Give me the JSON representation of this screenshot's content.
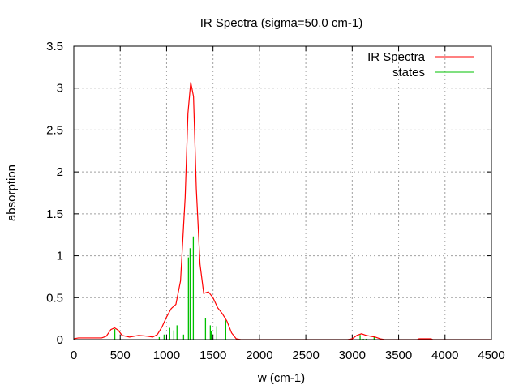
{
  "chart_data": {
    "type": "line",
    "title": "IR Spectra (sigma=50.0 cm-1)",
    "xlabel": "w (cm-1)",
    "ylabel": "absorption",
    "xlim": [
      0,
      4500
    ],
    "ylim": [
      0,
      3.5
    ],
    "xticks": [
      0,
      500,
      1000,
      1500,
      2000,
      2500,
      3000,
      3500,
      4000,
      4500
    ],
    "yticks": [
      0,
      0.5,
      1,
      1.5,
      2,
      2.5,
      3,
      3.5
    ],
    "ytick_labels": [
      "0",
      "0.5",
      "1",
      "1.5",
      "2",
      "2.5",
      "3",
      "3.5"
    ],
    "grid": true,
    "legend_position": "top-right",
    "series": [
      {
        "name": "IR Spectra",
        "color": "#ff0000",
        "style": "line",
        "x": [
          0,
          50,
          300,
          350,
          400,
          440,
          480,
          520,
          600,
          700,
          800,
          850,
          900,
          950,
          1000,
          1050,
          1100,
          1150,
          1200,
          1230,
          1260,
          1290,
          1320,
          1360,
          1400,
          1450,
          1500,
          1550,
          1600,
          1650,
          1700,
          1750,
          1800,
          2950,
          3000,
          3050,
          3100,
          3150,
          3200,
          3250,
          3300,
          3350,
          3700,
          3720,
          3850,
          3870,
          4500
        ],
        "y": [
          0.01,
          0.02,
          0.02,
          0.04,
          0.12,
          0.14,
          0.11,
          0.05,
          0.03,
          0.05,
          0.04,
          0.03,
          0.06,
          0.15,
          0.27,
          0.37,
          0.42,
          0.7,
          1.7,
          2.7,
          3.07,
          2.9,
          1.8,
          0.9,
          0.55,
          0.57,
          0.5,
          0.38,
          0.31,
          0.22,
          0.08,
          0.01,
          0,
          0,
          0.01,
          0.05,
          0.07,
          0.05,
          0.04,
          0.03,
          0.01,
          0,
          0,
          0.01,
          0.01,
          0,
          0
        ]
      },
      {
        "name": "states",
        "color": "#00c000",
        "style": "impulses",
        "x": [
          442,
          921,
          973,
          1034,
          1078,
          1112,
          1183,
          1235,
          1253,
          1288,
          1419,
          1471,
          1480,
          1541,
          1637,
          3085,
          3120,
          3150,
          3236
        ],
        "y": [
          0.125,
          0.03,
          0.06,
          0.14,
          0.11,
          0.17,
          0.06,
          0.98,
          1.09,
          1.23,
          0.26,
          0.17,
          0.1,
          0.16,
          0.23,
          0.055,
          0.01,
          0.01,
          0.04
        ]
      }
    ]
  }
}
